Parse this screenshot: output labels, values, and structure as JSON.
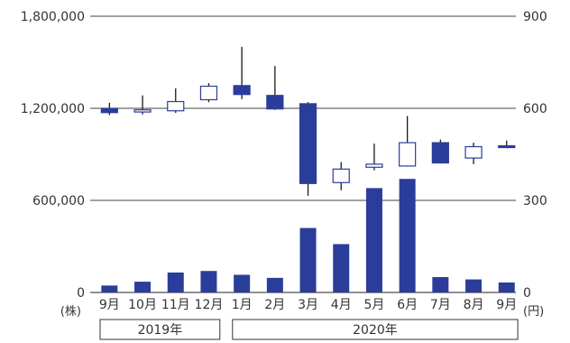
{
  "chart_data": {
    "type": "bar",
    "categories": [
      "9月",
      "10月",
      "11月",
      "12月",
      "1月",
      "2月",
      "3月",
      "4月",
      "5月",
      "6月",
      "7月",
      "8月",
      "9月"
    ],
    "year_groups": [
      {
        "label": "2019年",
        "months": [
          "9月",
          "10月",
          "11月",
          "12月"
        ]
      },
      {
        "label": "2020年",
        "months": [
          "1月",
          "2月",
          "3月",
          "4月",
          "5月",
          "6月",
          "7月",
          "8月",
          "9月"
        ]
      }
    ],
    "left_axis": {
      "unit": "(株)",
      "ticks": [
        "0",
        "600,000",
        "1,200,000",
        "1,800,000"
      ],
      "ylim": [
        0,
        1800000
      ]
    },
    "right_axis": {
      "unit": "(円)",
      "ticks": [
        "0",
        "300",
        "600",
        "900"
      ],
      "ylim": [
        0,
        900
      ]
    },
    "series": [
      {
        "kind": "volume",
        "axis": "left",
        "color": "#2a3d9a",
        "values": [
          45000,
          70000,
          130000,
          140000,
          115000,
          95000,
          420000,
          315000,
          680000,
          740000,
          100000,
          85000,
          65000
        ]
      },
      {
        "kind": "candlestick",
        "axis": "right",
        "up_color": "#ffffff",
        "down_color": "#2a3d9a",
        "outline_color": "#2a3d9a",
        "ohlc": [
          {
            "open": 600,
            "high": 618,
            "low": 578,
            "close": 586
          },
          {
            "open": 588,
            "high": 642,
            "low": 580,
            "close": 595
          },
          {
            "open": 592,
            "high": 665,
            "low": 585,
            "close": 622
          },
          {
            "open": 628,
            "high": 682,
            "low": 620,
            "close": 672
          },
          {
            "open": 674,
            "high": 800,
            "low": 630,
            "close": 645
          },
          {
            "open": 642,
            "high": 738,
            "low": 595,
            "close": 598
          },
          {
            "open": 615,
            "high": 620,
            "low": 315,
            "close": 355
          },
          {
            "open": 358,
            "high": 425,
            "low": 333,
            "close": 402
          },
          {
            "open": 408,
            "high": 485,
            "low": 398,
            "close": 418
          },
          {
            "open": 412,
            "high": 575,
            "low": 410,
            "close": 488
          },
          {
            "open": 488,
            "high": 498,
            "low": 420,
            "close": 422
          },
          {
            "open": 438,
            "high": 488,
            "low": 418,
            "close": 475
          },
          {
            "open": 478,
            "high": 495,
            "low": 470,
            "close": 472
          }
        ]
      }
    ],
    "grid": true
  }
}
